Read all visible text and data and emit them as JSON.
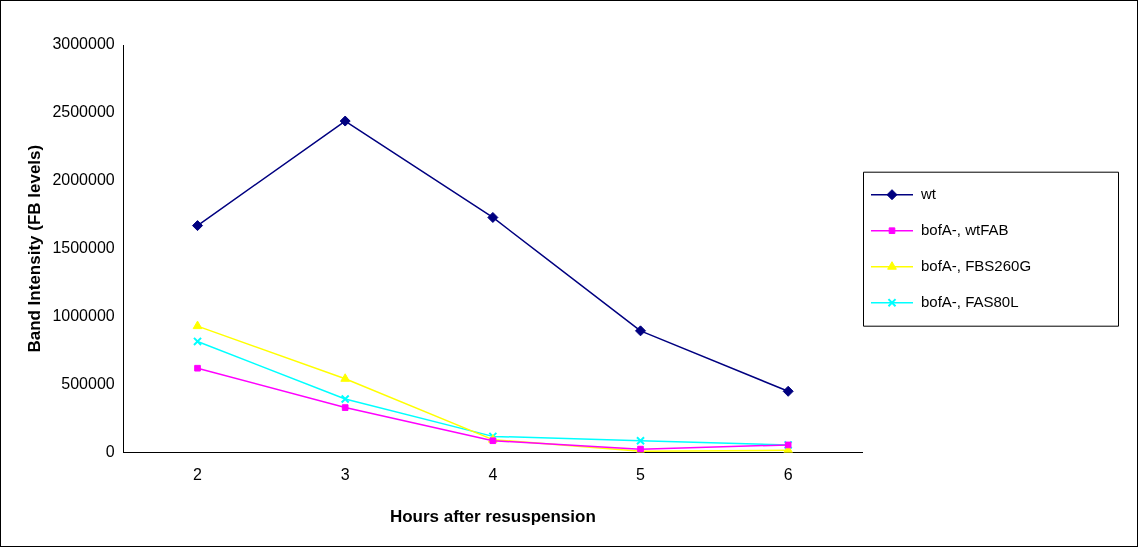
{
  "chart_data": {
    "type": "line",
    "xlabel": "Hours after resuspension",
    "ylabel": "Band Intensity (FB levels)",
    "categories": [
      "2",
      "3",
      "4",
      "5",
      "6"
    ],
    "ylim": [
      0,
      3000000
    ],
    "yticks": [
      0,
      500000,
      1000000,
      1500000,
      2000000,
      2500000,
      3000000
    ],
    "grid": false,
    "legend": "right",
    "line_style": "solid",
    "series": [
      {
        "name": "wt",
        "color": "#000080",
        "marker": "diamond",
        "values": [
          1670000,
          2440000,
          1730000,
          895000,
          450000
        ]
      },
      {
        "name": "bofA-, wtFAB",
        "color": "#ff00ff",
        "marker": "square",
        "values": [
          620000,
          330000,
          86000,
          24000,
          55000
        ]
      },
      {
        "name": "bofA-, FBS260G",
        "color": "#ffff00",
        "marker": "triangle",
        "values": [
          930000,
          542000,
          94000,
          8000,
          16000
        ]
      },
      {
        "name": "bofA-, FAS80L",
        "color": "#00ffff",
        "marker": "cross",
        "values": [
          817000,
          393000,
          118000,
          86000,
          55000
        ]
      }
    ]
  }
}
